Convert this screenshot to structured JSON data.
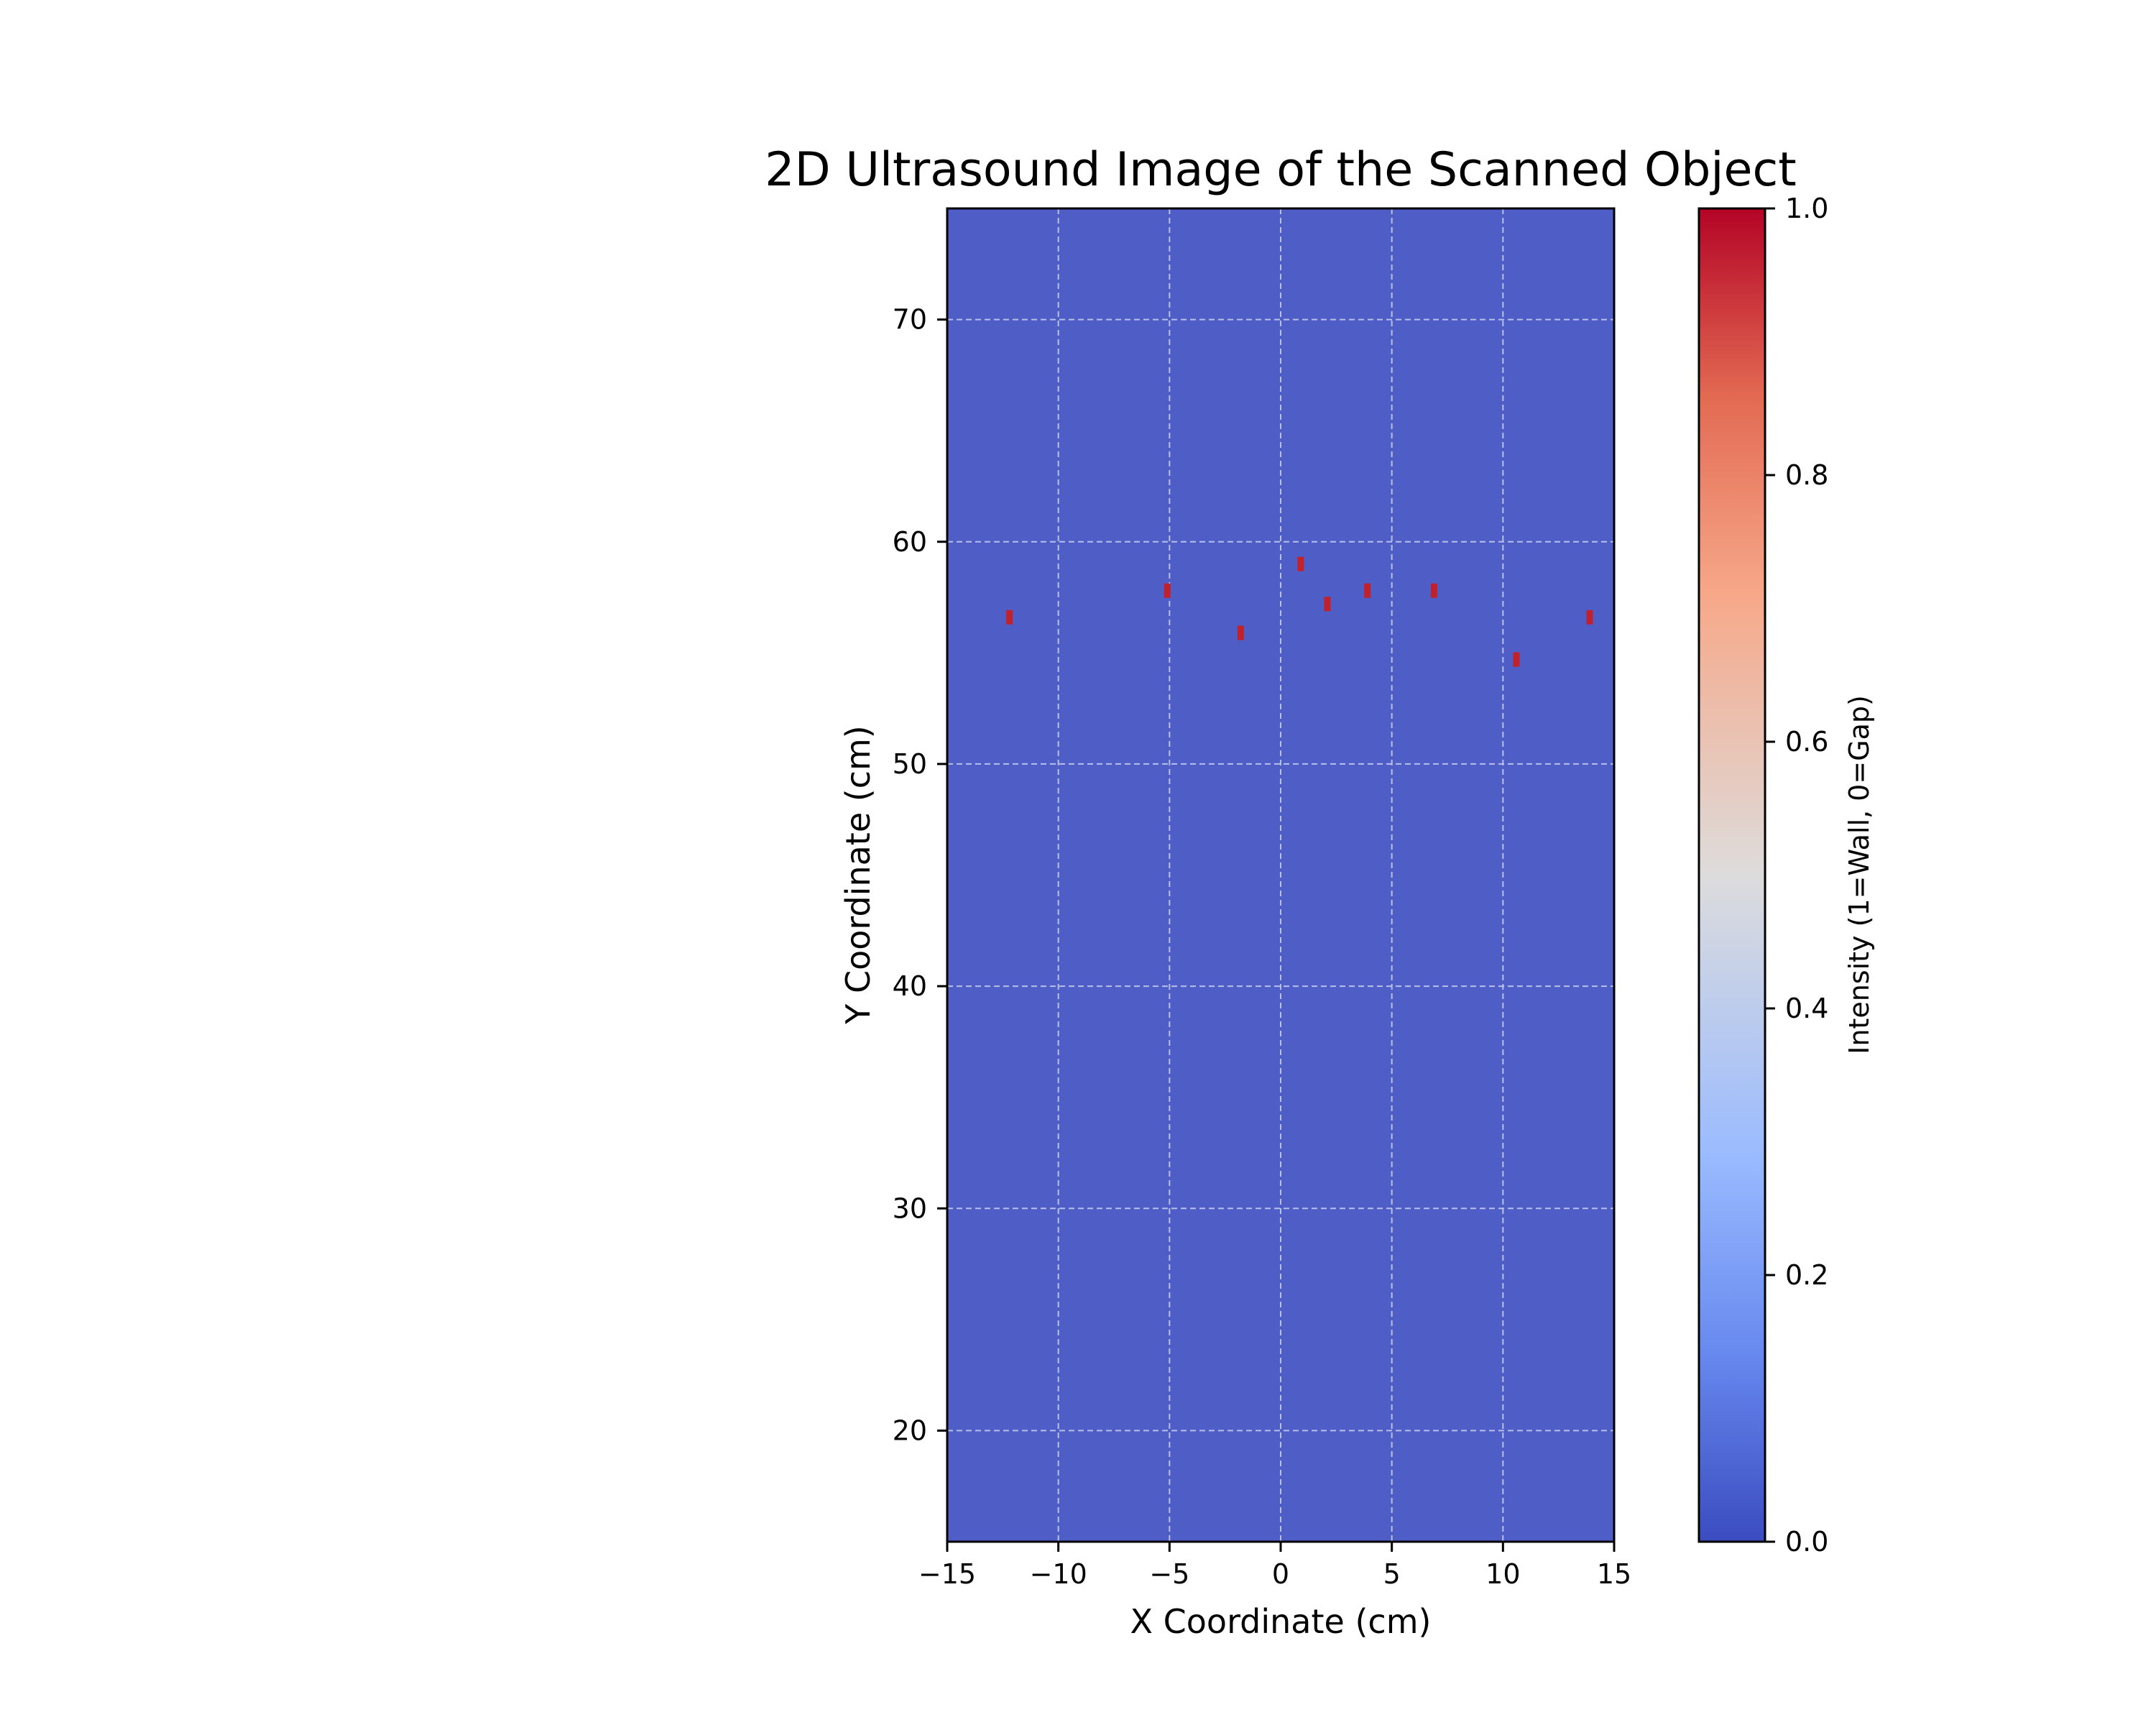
{
  "chart_data": {
    "type": "heatmap",
    "title": "2D Ultrasound Image of the Scanned Object",
    "xlabel": "X Coordinate (cm)",
    "ylabel": "Y Coordinate (cm)",
    "xlim": [
      -15,
      15
    ],
    "ylim": [
      15,
      75
    ],
    "xticks": [
      -15,
      -10,
      -5,
      0,
      5,
      10,
      15
    ],
    "xtick_labels": [
      "−15",
      "−10",
      "−5",
      "0",
      "5",
      "10",
      "15"
    ],
    "yticks": [
      20,
      30,
      40,
      50,
      60,
      70
    ],
    "ytick_labels": [
      "20",
      "30",
      "40",
      "50",
      "60",
      "70"
    ],
    "grid": true,
    "background_value": 0.0,
    "points": [
      {
        "x": -12.2,
        "y": 56.6,
        "value": 1.0
      },
      {
        "x": -5.1,
        "y": 57.8,
        "value": 1.0
      },
      {
        "x": -1.8,
        "y": 55.9,
        "value": 1.0
      },
      {
        "x": 0.9,
        "y": 59.0,
        "value": 1.0
      },
      {
        "x": 2.1,
        "y": 57.2,
        "value": 1.0
      },
      {
        "x": 3.9,
        "y": 57.8,
        "value": 1.0
      },
      {
        "x": 6.9,
        "y": 57.8,
        "value": 1.0
      },
      {
        "x": 10.6,
        "y": 54.7,
        "value": 1.0
      },
      {
        "x": 13.9,
        "y": 56.6,
        "value": 1.0
      }
    ],
    "colorbar": {
      "label": "Intensity (1=Wall, 0=Gap)",
      "range": [
        0.0,
        1.0
      ],
      "ticks": [
        0.0,
        0.2,
        0.4,
        0.6,
        0.8,
        1.0
      ],
      "tick_labels": [
        "0.0",
        "0.2",
        "0.4",
        "0.6",
        "0.8",
        "1.0"
      ],
      "colormap": "coolwarm",
      "colors": [
        "#3b4cc0",
        "#6788ee",
        "#9abbff",
        "#c9d7f0",
        "#edd1c2",
        "#f7a889",
        "#e26952",
        "#b40426"
      ]
    },
    "colors": {
      "low": "#4f5dc6",
      "high": "#c0222d",
      "grid": "#b8c0e8"
    }
  }
}
